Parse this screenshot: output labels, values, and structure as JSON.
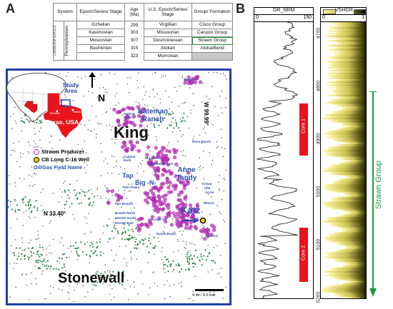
{
  "panels": {
    "a": "A",
    "b": "B"
  },
  "table": {
    "headers": [
      "System",
      "Epoch/Series/ Stage",
      "Age (Ma)",
      "U.S. Epoch/Series/ Stage",
      "Group/ Formation"
    ],
    "system": "CARBONIFEROUS",
    "subsystem": "Pennsylvanian",
    "stages": [
      "Gzhelian",
      "Kasimovian",
      "Moscovian",
      "Bashkirian"
    ],
    "ages": [
      "299",
      "303",
      "307",
      "315",
      "323"
    ],
    "us_stages": [
      "Virgillian",
      "Missourian",
      "Desmoinesian",
      "Atokan",
      "Morrowan"
    ],
    "groups": [
      "Cisco Group",
      "Canyon Group",
      "Strawn Group",
      "Atoka/Bend",
      ""
    ]
  },
  "inset": {
    "study_area": "Study Area",
    "state": "Texas, USA",
    "cities": [
      "Midland",
      "Dallas",
      "Houston"
    ]
  },
  "map": {
    "north": "N",
    "counties": [
      "King",
      "Stonewall"
    ],
    "longitude": "W 99.99°",
    "latitude": "N 33.40°",
    "legend": [
      "Strawn Producer",
      "CB Long C-16 Well",
      "Oil/Gas Field Name"
    ],
    "fields_major": [
      "Bateman Ranch",
      "Anne Tandy",
      "Katz"
    ],
    "fields_mid": [
      "Tap",
      "Big -N-"
    ],
    "fields_small": [
      "Juniper",
      "Guthrie North",
      "Captain Burk",
      "Big RRR",
      "Burnett Ranch",
      "Ross Ranch",
      "Twin Peaks",
      "Pen Branch",
      "Bissett North",
      "Bissett South",
      "Bissett East",
      "Bissett NE",
      "Kiowa Peaks",
      "Julianne",
      "Wilson",
      "Ulla",
      "Kiowa",
      "Acree"
    ],
    "scale": "4 mi / 6.5 km",
    "colors": {
      "frame": "#2340a8",
      "producer": "#c030c0",
      "field_label": "#2b52b0",
      "well": "#f0d000"
    }
  },
  "log": {
    "gr_title": "GR_NRM",
    "gr_range": [
      "0",
      "150"
    ],
    "vshgr_title": "VSHGR",
    "vshgr_range": [
      "0",
      "1"
    ],
    "depth_ticks": [
      "4700",
      "4800",
      "4900",
      "5000",
      "5100",
      "5200"
    ],
    "cores": [
      "Core 1",
      "Core 2"
    ],
    "group_label": "Strawn Group",
    "colors": {
      "core": "#e8141c",
      "group_arrow": "#1a9a3a"
    }
  }
}
